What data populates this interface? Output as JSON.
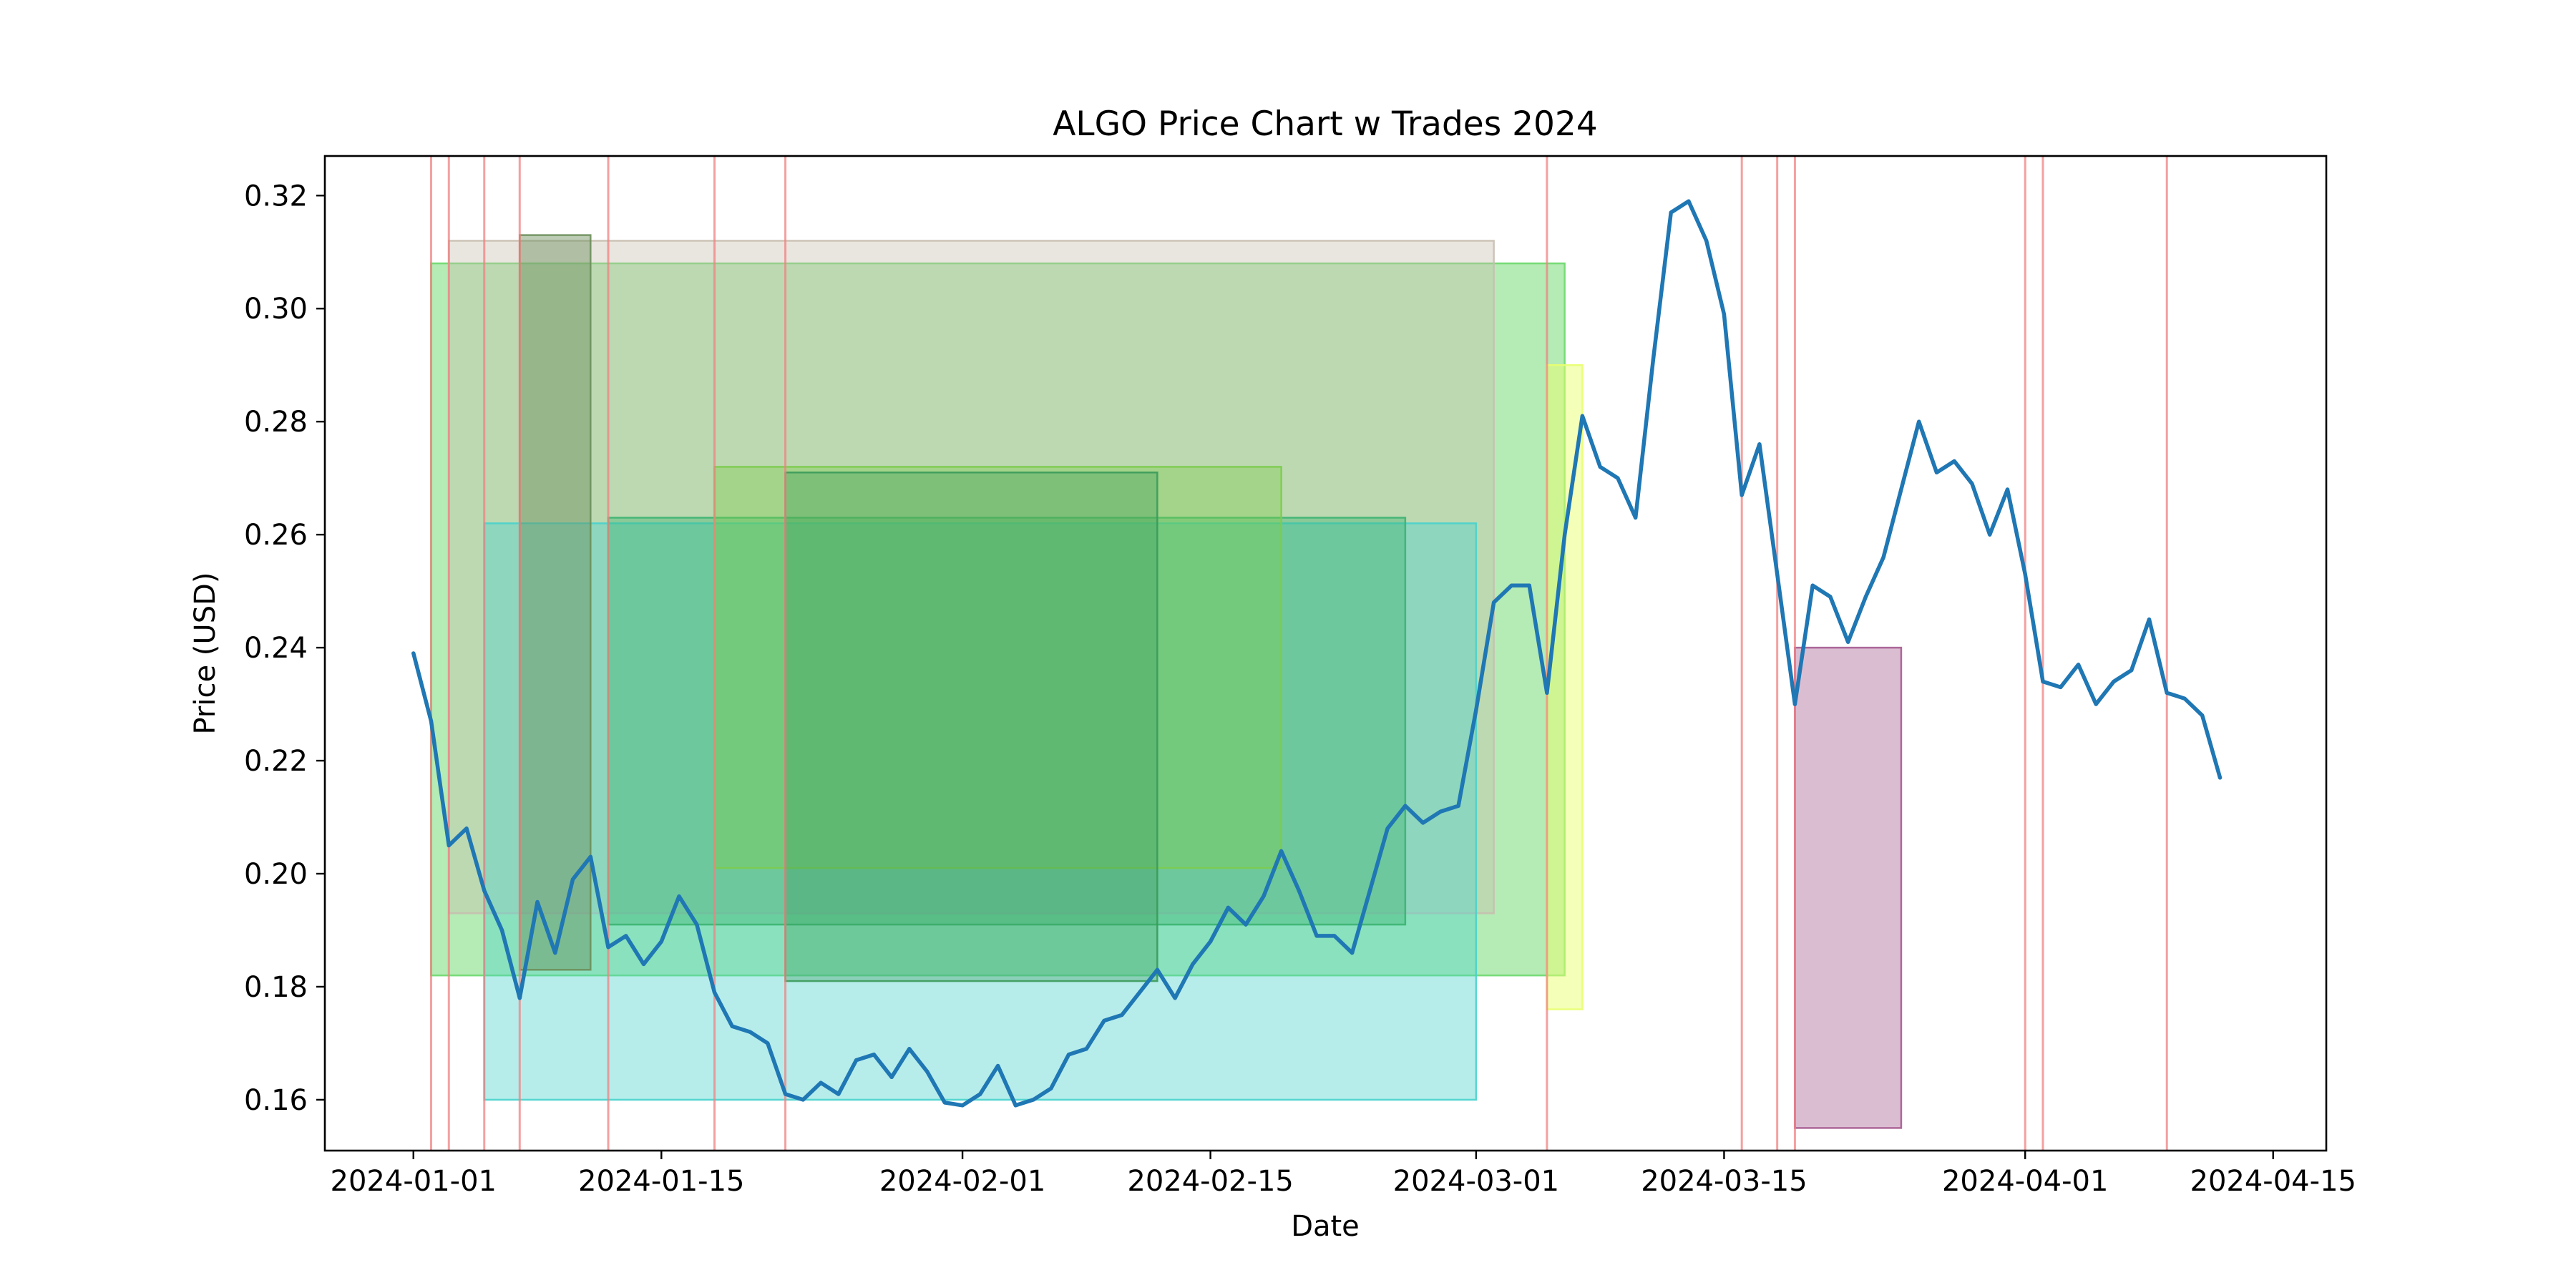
{
  "chart_data": {
    "type": "line",
    "title": "ALGO Price Chart w Trades 2024",
    "xlabel": "Date",
    "ylabel": "Price (USD)",
    "xlim": [
      "2023-12-27",
      "2024-04-18"
    ],
    "ylim": [
      0.151,
      0.327
    ],
    "grid": false,
    "line_color": "#1f77b4",
    "xticks": [
      "2024-01-01",
      "2024-01-15",
      "2024-02-01",
      "2024-02-15",
      "2024-03-01",
      "2024-03-15",
      "2024-04-01",
      "2024-04-15"
    ],
    "yticks": [
      "0.16",
      "0.18",
      "0.20",
      "0.22",
      "0.24",
      "0.26",
      "0.28",
      "0.30",
      "0.32"
    ],
    "series": [
      {
        "x": [
          "2024-01-01",
          "2024-01-02",
          "2024-01-03",
          "2024-01-04",
          "2024-01-05",
          "2024-01-06",
          "2024-01-07",
          "2024-01-08",
          "2024-01-09",
          "2024-01-10",
          "2024-01-11",
          "2024-01-12",
          "2024-01-13",
          "2024-01-14",
          "2024-01-15",
          "2024-01-16",
          "2024-01-17",
          "2024-01-18",
          "2024-01-19",
          "2024-01-20",
          "2024-01-21",
          "2024-01-22",
          "2024-01-23",
          "2024-01-24",
          "2024-01-25",
          "2024-01-26",
          "2024-01-27",
          "2024-01-28",
          "2024-01-29",
          "2024-01-30",
          "2024-01-31",
          "2024-02-01",
          "2024-02-02",
          "2024-02-03",
          "2024-02-04",
          "2024-02-05",
          "2024-02-06",
          "2024-02-07",
          "2024-02-08",
          "2024-02-09",
          "2024-02-10",
          "2024-02-11",
          "2024-02-12",
          "2024-02-13",
          "2024-02-14",
          "2024-02-15",
          "2024-02-16",
          "2024-02-17",
          "2024-02-18",
          "2024-02-19",
          "2024-02-20",
          "2024-02-21",
          "2024-02-22",
          "2024-02-23",
          "2024-02-24",
          "2024-02-25",
          "2024-02-26",
          "2024-02-27",
          "2024-02-28",
          "2024-02-29",
          "2024-03-01",
          "2024-03-02",
          "2024-03-03",
          "2024-03-04",
          "2024-03-05",
          "2024-03-06",
          "2024-03-07",
          "2024-03-08",
          "2024-03-09",
          "2024-03-10",
          "2024-03-11",
          "2024-03-12",
          "2024-03-13",
          "2024-03-14",
          "2024-03-15",
          "2024-03-16",
          "2024-03-17",
          "2024-03-18",
          "2024-03-19",
          "2024-03-20",
          "2024-03-21",
          "2024-03-22",
          "2024-03-23",
          "2024-03-24",
          "2024-03-25",
          "2024-03-26",
          "2024-03-27",
          "2024-03-28",
          "2024-03-29",
          "2024-03-30",
          "2024-03-31",
          "2024-04-01",
          "2024-04-02",
          "2024-04-03",
          "2024-04-04",
          "2024-04-05",
          "2024-04-06",
          "2024-04-07",
          "2024-04-08",
          "2024-04-09",
          "2024-04-10",
          "2024-04-11",
          "2024-04-12"
        ],
        "values": [
          0.239,
          0.227,
          0.205,
          0.208,
          0.197,
          0.19,
          0.178,
          0.195,
          0.186,
          0.199,
          0.203,
          0.187,
          0.189,
          0.184,
          0.188,
          0.196,
          0.191,
          0.179,
          0.173,
          0.172,
          0.17,
          0.161,
          0.16,
          0.163,
          0.161,
          0.167,
          0.168,
          0.164,
          0.169,
          0.165,
          0.1595,
          0.159,
          0.161,
          0.166,
          0.159,
          0.16,
          0.162,
          0.168,
          0.169,
          0.174,
          0.175,
          0.179,
          0.183,
          0.178,
          0.184,
          0.188,
          0.194,
          0.191,
          0.196,
          0.204,
          0.197,
          0.189,
          0.189,
          0.186,
          0.197,
          0.208,
          0.212,
          0.209,
          0.211,
          0.212,
          0.229,
          0.248,
          0.251,
          0.251,
          0.232,
          0.26,
          0.281,
          0.272,
          0.27,
          0.263,
          0.291,
          0.317,
          0.319,
          0.312,
          0.299,
          0.267,
          0.276,
          0.253,
          0.23,
          0.251,
          0.249,
          0.241,
          0.249,
          0.256,
          0.268,
          0.28,
          0.271,
          0.273,
          0.269,
          0.26,
          0.268,
          0.253,
          0.234,
          0.233,
          0.237,
          0.23,
          0.234,
          0.236,
          0.245,
          0.232,
          0.231,
          0.228,
          0.217
        ]
      }
    ],
    "trade_lines": {
      "color": "#f08080",
      "dates": [
        "2024-01-02",
        "2024-01-03",
        "2024-01-05",
        "2024-01-07",
        "2024-01-12",
        "2024-01-18",
        "2024-01-22",
        "2024-03-05",
        "2024-03-16",
        "2024-03-18",
        "2024-03-19",
        "2024-04-01",
        "2024-04-02",
        "2024-04-09"
      ]
    },
    "trade_boxes": [
      {
        "start": "2024-01-02",
        "end": "2024-03-06",
        "low": 0.182,
        "high": 0.308,
        "color": "#6cd86c",
        "opacity": 0.5
      },
      {
        "start": "2024-01-03",
        "end": "2024-03-02",
        "low": 0.193,
        "high": 0.312,
        "color": "#c8bfb0",
        "opacity": 0.4
      },
      {
        "start": "2024-01-05",
        "end": "2024-03-01",
        "low": 0.16,
        "high": 0.262,
        "color": "#48d1cc",
        "opacity": 0.4
      },
      {
        "start": "2024-01-07",
        "end": "2024-01-11",
        "low": 0.183,
        "high": 0.313,
        "color": "#6b8e5a",
        "opacity": 0.45
      },
      {
        "start": "2024-01-12",
        "end": "2024-02-26",
        "low": 0.191,
        "high": 0.263,
        "color": "#3cb371",
        "opacity": 0.4
      },
      {
        "start": "2024-01-18",
        "end": "2024-02-19",
        "low": 0.201,
        "high": 0.272,
        "color": "#7ccc4c",
        "opacity": 0.4
      },
      {
        "start": "2024-01-22",
        "end": "2024-02-12",
        "low": 0.181,
        "high": 0.271,
        "color": "#3a9a5a",
        "opacity": 0.35
      },
      {
        "start": "2024-03-05",
        "end": "2024-03-07",
        "low": 0.176,
        "high": 0.29,
        "color": "#e9ff70",
        "opacity": 0.5
      },
      {
        "start": "2024-03-19",
        "end": "2024-03-25",
        "low": 0.155,
        "high": 0.24,
        "color": "#a45a8f",
        "opacity": 0.4
      }
    ]
  }
}
